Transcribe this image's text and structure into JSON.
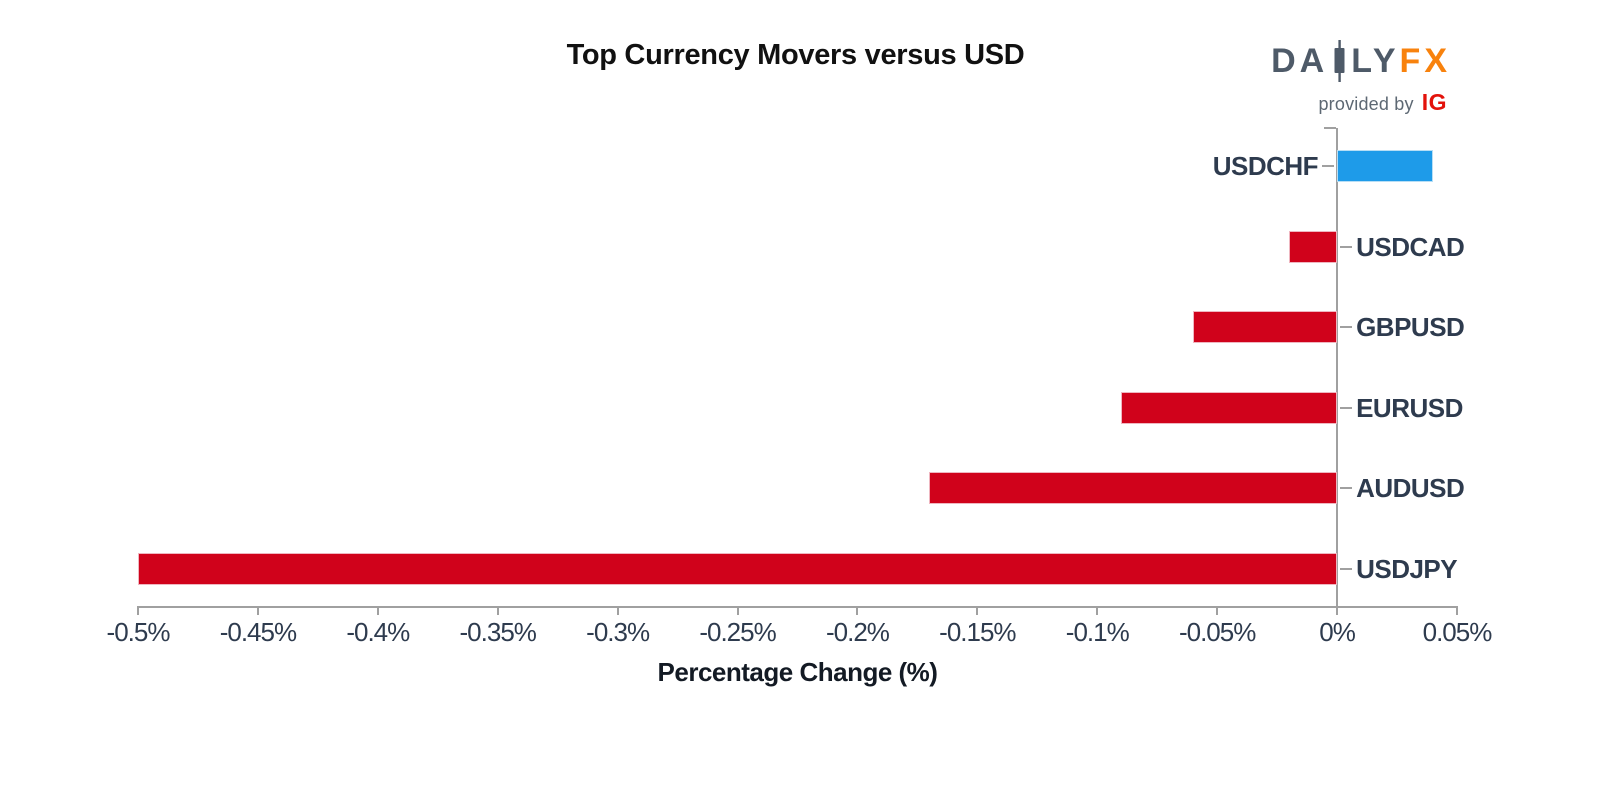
{
  "header": {
    "title": "Top Currency Movers versus USD"
  },
  "logo": {
    "brand_left": "DA",
    "brand_mid": "LY",
    "brand_accent": "FX",
    "tagline": "provided by",
    "tagline_brand": "IG",
    "brand_color": "#4e5a68",
    "accent_color": "#f8820d",
    "ig_color": "#e3120b"
  },
  "chart_data": {
    "type": "bar",
    "orientation": "horizontal",
    "title": "Top Currency Movers versus USD",
    "xlabel": "Percentage Change (%)",
    "categories": [
      "USDCHF",
      "USDCAD",
      "GBPUSD",
      "EURUSD",
      "AUDUSD",
      "USDJPY"
    ],
    "values": [
      0.04,
      -0.02,
      -0.06,
      -0.09,
      -0.17,
      -0.5
    ],
    "xlim": [
      -0.5,
      0.05
    ],
    "xticks": [
      -0.5,
      -0.45,
      -0.4,
      -0.35,
      -0.3,
      -0.25,
      -0.2,
      -0.15,
      -0.1,
      -0.05,
      0,
      0.05
    ],
    "xtick_labels": [
      "-0.5%",
      "-0.45%",
      "-0.4%",
      "-0.35%",
      "-0.3%",
      "-0.25%",
      "-0.2%",
      "-0.15%",
      "-0.1%",
      "-0.05%",
      "0%",
      "0.05%"
    ],
    "grid": false,
    "legend": null,
    "colors": {
      "positive": "#1e9be9",
      "negative": "#d0021b",
      "axis": "#a0a0a0",
      "label_text": "#2e3b4e"
    }
  }
}
